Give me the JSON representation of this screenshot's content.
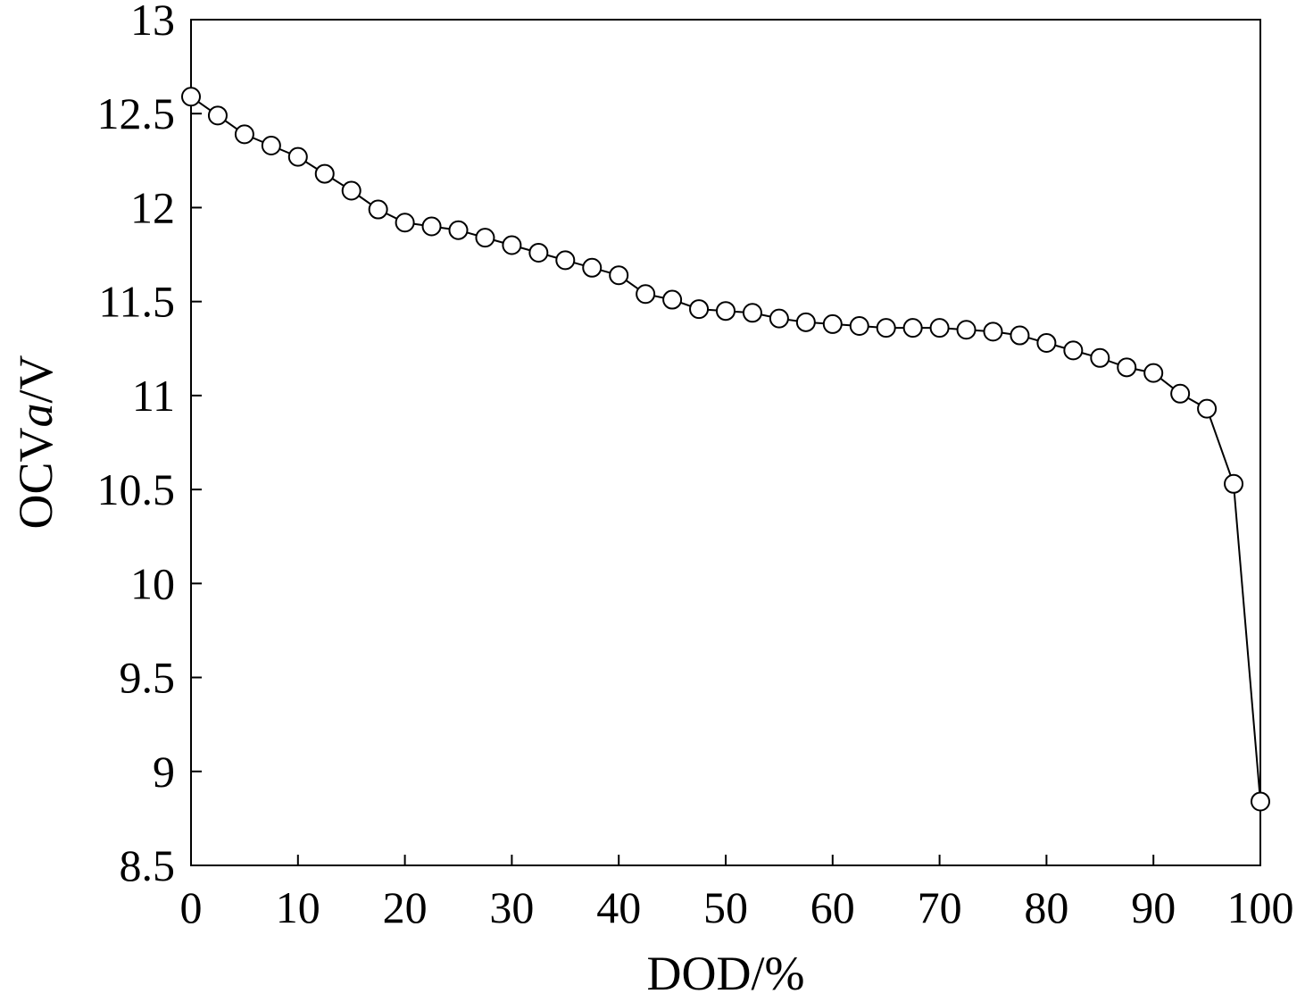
{
  "chart_data": {
    "type": "line",
    "title": "",
    "xlabel": "DOD/%",
    "ylabel_parts": [
      "OCV",
      "a",
      "/V"
    ],
    "xlim": [
      0,
      100
    ],
    "ylim": [
      8.5,
      13
    ],
    "x_ticks": [
      0,
      10,
      20,
      30,
      40,
      50,
      60,
      70,
      80,
      90,
      100
    ],
    "y_ticks": [
      8.5,
      9,
      9.5,
      10,
      10.5,
      11,
      11.5,
      12,
      12.5,
      13
    ],
    "grid": false,
    "legend": "none",
    "marker": "open-circle",
    "line_color": "#000000",
    "series": [
      {
        "x": [
          0,
          2.5,
          5,
          7.5,
          10,
          12.5,
          15,
          17.5,
          20,
          22.5,
          25,
          27.5,
          30,
          32.5,
          35,
          37.5,
          40,
          42.5,
          45,
          47.5,
          50,
          52.5,
          55,
          57.5,
          60,
          62.5,
          65,
          67.5,
          70,
          72.5,
          75,
          77.5,
          80,
          82.5,
          85,
          87.5,
          90,
          92.5,
          95,
          97.5,
          100
        ],
        "y": [
          12.59,
          12.49,
          12.39,
          12.33,
          12.27,
          12.18,
          12.09,
          11.99,
          11.92,
          11.9,
          11.88,
          11.84,
          11.8,
          11.76,
          11.72,
          11.68,
          11.64,
          11.54,
          11.51,
          11.46,
          11.45,
          11.44,
          11.41,
          11.39,
          11.38,
          11.37,
          11.36,
          11.36,
          11.36,
          11.35,
          11.34,
          11.32,
          11.28,
          11.24,
          11.2,
          11.15,
          11.12,
          11.01,
          10.93,
          10.53,
          8.84
        ]
      }
    ]
  }
}
